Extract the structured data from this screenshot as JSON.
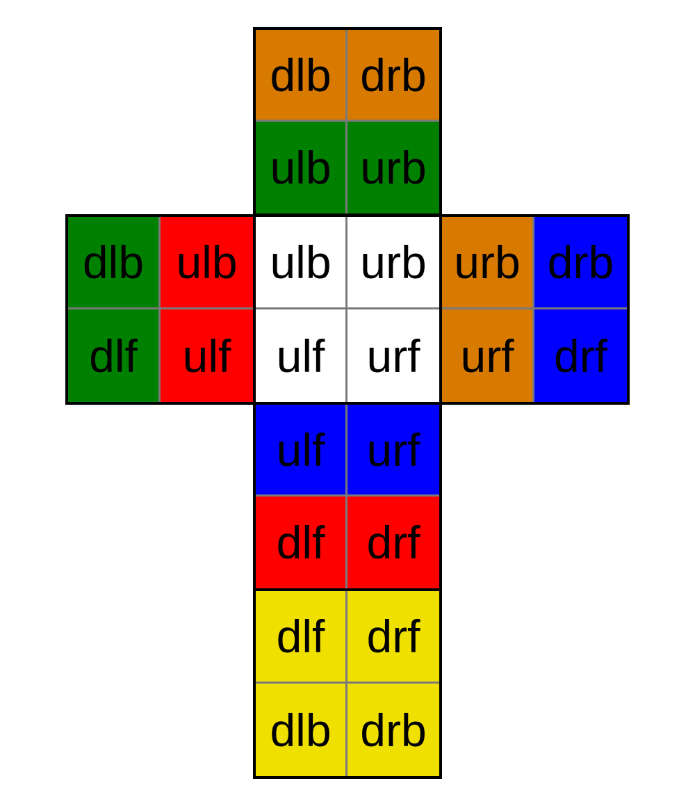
{
  "colors": {
    "orange": "#D87A00",
    "green": "#008000",
    "red": "#FF0000",
    "white": "#FFFFFF",
    "blue": "#0000FF",
    "yellow": "#F0E000"
  },
  "faces": [
    {
      "name": "back-face",
      "color": "#D87A00",
      "stickers": [
        "dlb",
        "drb",
        "",
        ""
      ]
    },
    {
      "name": "top-face",
      "color": "#008000",
      "stickers": [
        "ulb",
        "urb",
        "",
        ""
      ]
    },
    {
      "name": "left-outer-face",
      "color": "#008000",
      "stickers": [
        "dlb",
        "",
        "dlf",
        ""
      ]
    },
    {
      "name": "left-face",
      "color": "#FF0000",
      "stickers": [
        "ulb",
        "",
        "ulf",
        ""
      ]
    },
    {
      "name": "up-face",
      "color": "#FFFFFF",
      "stickers": [
        "ulb",
        "urb",
        "ulf",
        "urf"
      ]
    },
    {
      "name": "right-face",
      "color": "#D87A00",
      "stickers": [
        "urb",
        "",
        "urf",
        ""
      ]
    },
    {
      "name": "right-outer-face",
      "color": "#0000FF",
      "stickers": [
        "drb",
        "",
        "drf",
        ""
      ]
    },
    {
      "name": "front-face",
      "color": "#0000FF",
      "stickers": [
        "ulf",
        "urf",
        "",
        ""
      ]
    },
    {
      "name": "front-lower-face",
      "color": "#FF0000",
      "stickers": [
        "dlf",
        "drf",
        "",
        ""
      ]
    },
    {
      "name": "down-face",
      "color": "#F0E000",
      "stickers": [
        "dlf",
        "drf",
        "dlb",
        "drb"
      ]
    }
  ]
}
